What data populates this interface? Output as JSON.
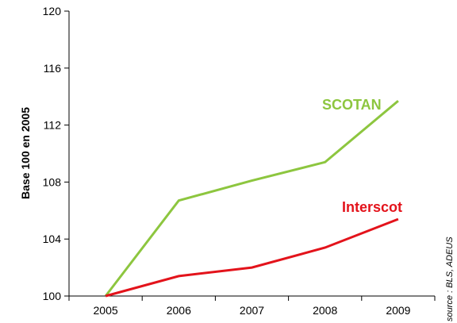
{
  "chart_data": {
    "type": "line",
    "title": "",
    "xlabel": "",
    "ylabel": "Base 100 en 2005",
    "x": [
      "2005",
      "2006",
      "2007",
      "2008",
      "2009"
    ],
    "ylim": [
      100,
      120
    ],
    "yticks": [
      "100",
      "104",
      "108",
      "112",
      "116",
      "120"
    ],
    "grid": false,
    "legend": "none (series labeled directly on chart)",
    "series": [
      {
        "name": "SCOTAN",
        "color": "#8dc63f",
        "values": [
          100,
          106.7,
          108.1,
          109.4,
          113.7
        ]
      },
      {
        "name": "Interscot",
        "color": "#e3131b",
        "values": [
          100,
          101.4,
          102.0,
          103.4,
          105.4
        ]
      }
    ],
    "source_note": "source : BLS, ADEUS"
  }
}
